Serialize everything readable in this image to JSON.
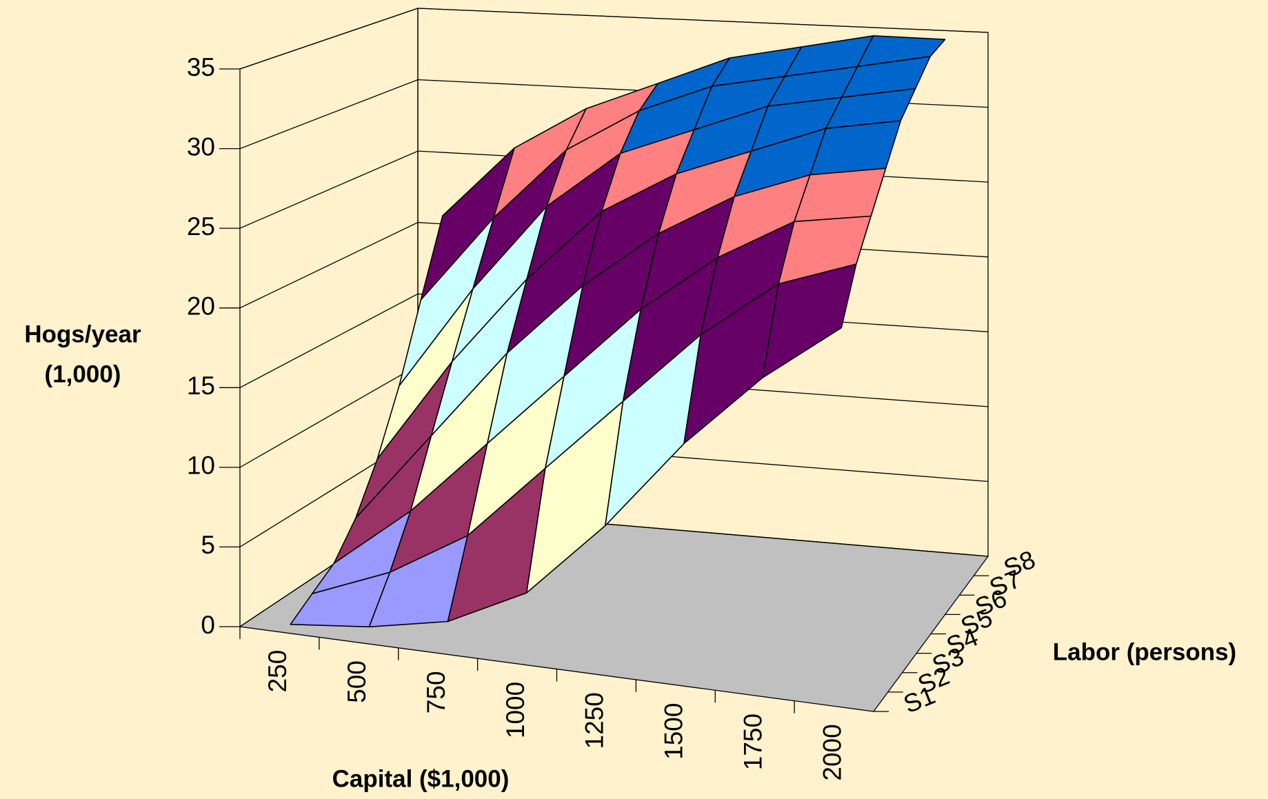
{
  "chart_data": {
    "type": "surface",
    "zlabel": [
      "Hogs/year",
      "(1,000)"
    ],
    "xlabel": "Capital ($1,000)",
    "ylabel": "Labor (persons)",
    "categories": [
      "250",
      "500",
      "750",
      "1000",
      "1250",
      "1500",
      "1750",
      "2000"
    ],
    "series": [
      {
        "name": "S1",
        "values": [
          0,
          0.5,
          1.5,
          4,
          9,
          15,
          20,
          24
        ]
      },
      {
        "name": "S2",
        "values": [
          1,
          3,
          6,
          11,
          16,
          21,
          25,
          27
        ]
      },
      {
        "name": "S3",
        "values": [
          2,
          6,
          11,
          16,
          21,
          25,
          28,
          29
        ]
      },
      {
        "name": "S4",
        "values": [
          4,
          10,
          16,
          21,
          25,
          28,
          30,
          31
        ]
      },
      {
        "name": "S5",
        "values": [
          7,
          14,
          20,
          25,
          28,
          30,
          32,
          33
        ]
      },
      {
        "name": "S6",
        "values": [
          11,
          18,
          24,
          28,
          30,
          32,
          33,
          34
        ]
      },
      {
        "name": "S7",
        "values": [
          16,
          22,
          27,
          30,
          32,
          33,
          34,
          35
        ]
      },
      {
        "name": "S8",
        "values": [
          21,
          26,
          29,
          31,
          33,
          34,
          35,
          35
        ]
      }
    ],
    "zlim": [
      0,
      35
    ],
    "zticks": [
      0,
      5,
      10,
      15,
      20,
      25,
      30,
      35
    ],
    "band_colors": [
      "#9999ff",
      "#993366",
      "#ffffcc",
      "#ccffff",
      "#660066",
      "#ff8080",
      "#0066cc"
    ],
    "floor_color": "#c0c0c0",
    "grid": true
  }
}
